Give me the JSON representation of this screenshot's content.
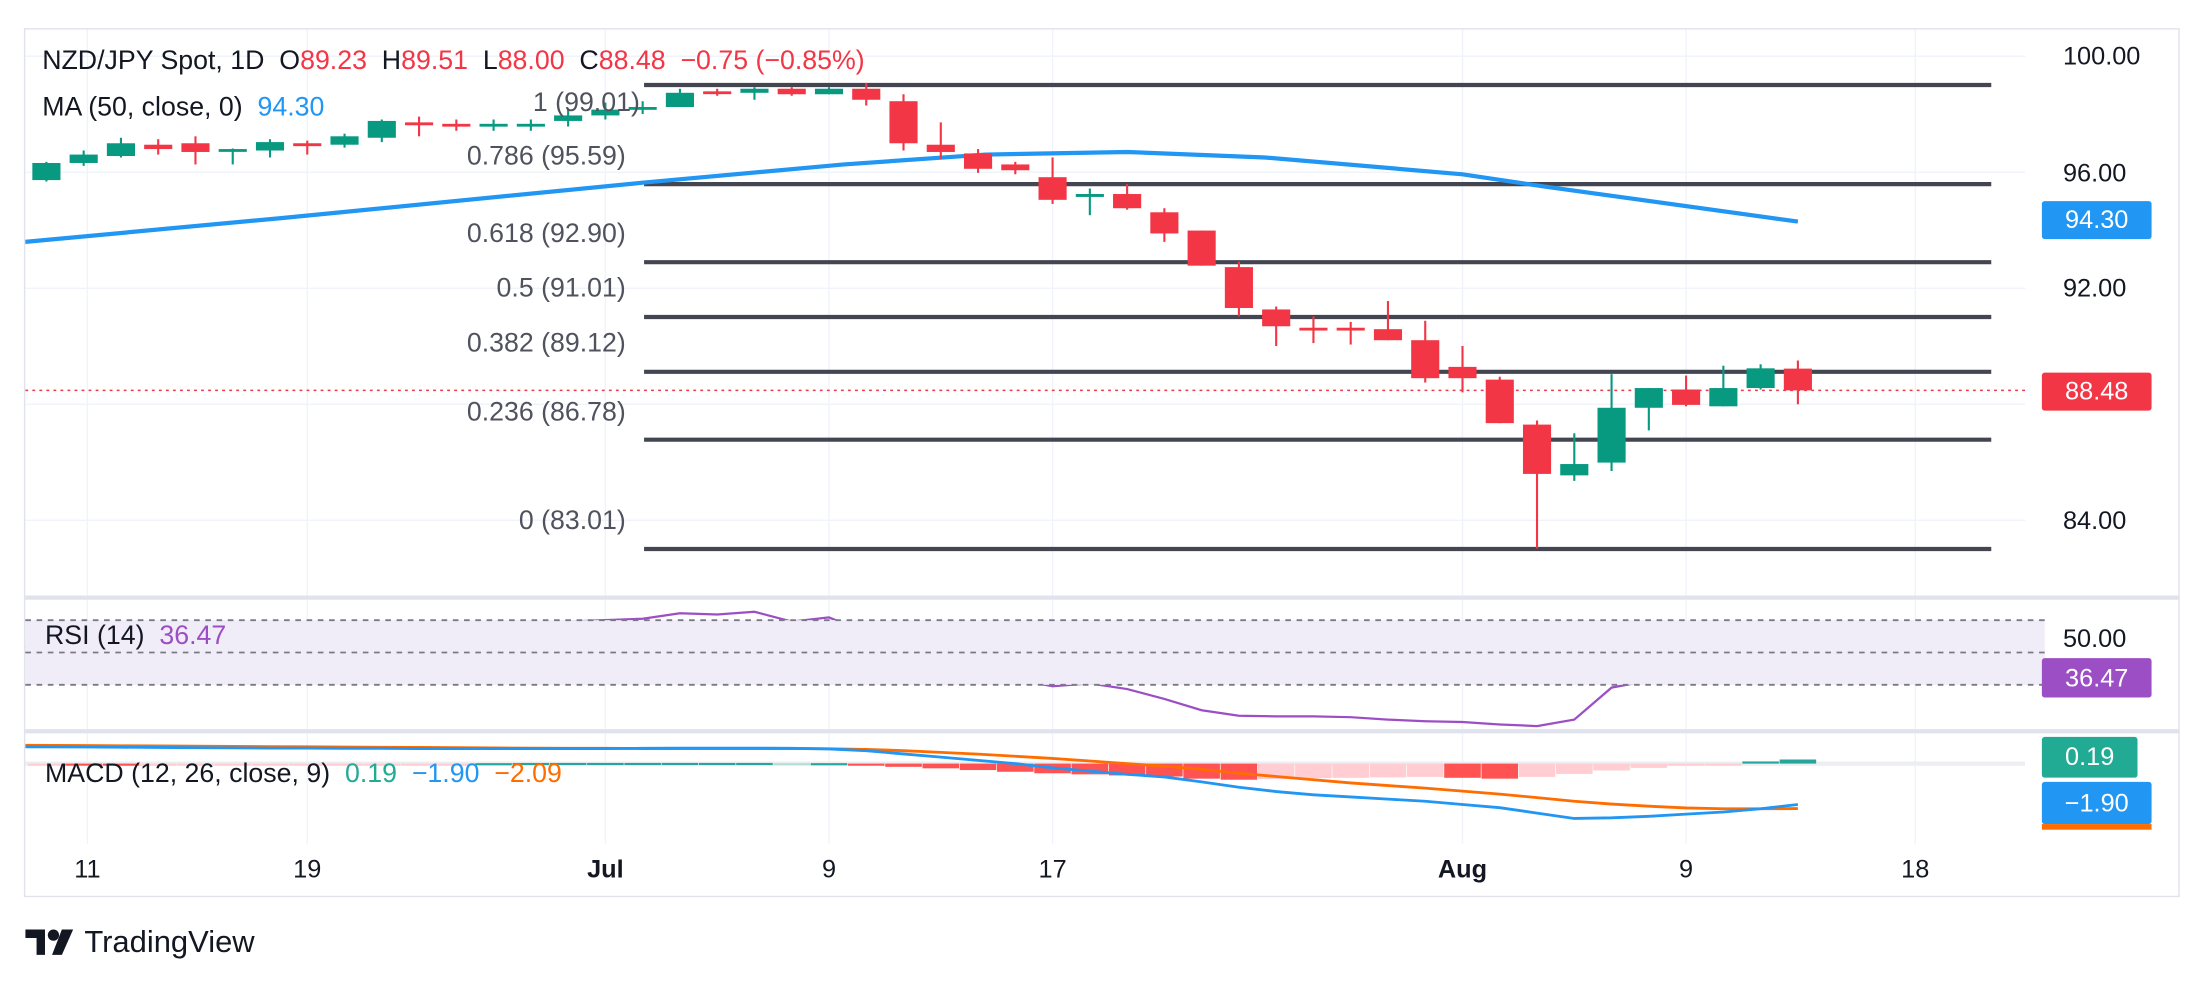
{
  "header": {
    "symbol": "NZD/JPY Spot, 1D",
    "o_label": "O",
    "o": "89.23",
    "h_label": "H",
    "h": "89.51",
    "l_label": "L",
    "l": "88.00",
    "c_label": "C",
    "c": "88.48",
    "change": "−0.75 (−0.85%)"
  },
  "ma_legend": {
    "label": "MA (50, close, 0)",
    "value": "94.30"
  },
  "rsi_legend": {
    "label": "RSI (14)",
    "value": "36.47"
  },
  "macd_legend": {
    "label": "MACD (12, 26, close, 9)",
    "hist": "0.19",
    "macd": "−1.90",
    "signal": "−2.09"
  },
  "price_axis": {
    "ticks": [
      {
        "label": "100.00",
        "value": 100
      },
      {
        "label": "96.00",
        "value": 96
      },
      {
        "label": "92.00",
        "value": 92
      },
      {
        "label": "84.00",
        "value": 84
      }
    ],
    "current": "88.48",
    "ma": "94.30"
  },
  "rsi_axis": {
    "tick": "50.00",
    "current": "36.47"
  },
  "macd_axis": {
    "hist": "0.19",
    "macd": "−1.90"
  },
  "time_axis": [
    {
      "label": "11",
      "index": 1.1,
      "bold": false
    },
    {
      "label": "19",
      "index": 7,
      "bold": false
    },
    {
      "label": "Jul",
      "index": 15,
      "bold": true
    },
    {
      "label": "9",
      "index": 21,
      "bold": false
    },
    {
      "label": "17",
      "index": 27,
      "bold": false
    },
    {
      "label": "Aug",
      "index": 38,
      "bold": true
    },
    {
      "label": "9",
      "index": 44,
      "bold": false
    },
    {
      "label": "18",
      "index": 50.15,
      "bold": false
    }
  ],
  "fib": [
    {
      "label": "1 (99.01)",
      "level": 99.01
    },
    {
      "label": "0.786 (95.59)",
      "level": 95.59
    },
    {
      "label": "0.618 (92.90)",
      "level": 92.9
    },
    {
      "label": "0.5 (91.01)",
      "level": 91.01
    },
    {
      "label": "0.382 (89.12)",
      "level": 89.12
    },
    {
      "label": "0.236 (86.78)",
      "level": 86.78
    },
    {
      "label": "0 (83.01)",
      "level": 83.01
    }
  ],
  "logo": "TradingView",
  "colors": {
    "up": "#089981",
    "down": "#f23645",
    "ma": "#2196f3",
    "rsi": "#9c4fc4",
    "macd": "#2196f3",
    "signal": "#ff6d00",
    "fib": "#434651",
    "grid": "#f0f3fa"
  },
  "chart_data": {
    "type": "candlestick",
    "title": "NZD/JPY Spot, 1D",
    "ylim": [
      82,
      101
    ],
    "ohlc": [
      [
        95.73,
        96.36,
        95.68,
        96.32
      ],
      [
        96.32,
        96.75,
        96.22,
        96.61
      ],
      [
        96.56,
        97.19,
        96.51,
        97.0
      ],
      [
        96.95,
        97.14,
        96.61,
        96.8
      ],
      [
        97.0,
        97.24,
        96.27,
        96.7
      ],
      [
        96.75,
        96.82,
        96.27,
        96.8
      ],
      [
        96.75,
        97.14,
        96.51,
        97.04
      ],
      [
        97.0,
        97.09,
        96.61,
        96.9
      ],
      [
        96.95,
        97.33,
        96.85,
        97.24
      ],
      [
        97.19,
        97.82,
        97.04,
        97.77
      ],
      [
        97.72,
        97.92,
        97.24,
        97.62
      ],
      [
        97.67,
        97.82,
        97.43,
        97.58
      ],
      [
        97.62,
        97.82,
        97.43,
        97.67
      ],
      [
        97.62,
        97.82,
        97.43,
        97.67
      ],
      [
        97.77,
        98.16,
        97.58,
        97.96
      ],
      [
        97.96,
        98.4,
        97.82,
        98.16
      ],
      [
        98.21,
        98.45,
        98.01,
        98.25
      ],
      [
        98.25,
        98.88,
        98.25,
        98.74
      ],
      [
        98.79,
        98.88,
        98.64,
        98.74
      ],
      [
        98.74,
        98.93,
        98.5,
        98.88
      ],
      [
        98.88,
        98.93,
        98.64,
        98.69
      ],
      [
        98.69,
        98.93,
        98.69,
        98.88
      ],
      [
        98.88,
        99.08,
        98.3,
        98.5
      ],
      [
        98.45,
        98.69,
        96.75,
        97.0
      ],
      [
        96.95,
        97.72,
        96.46,
        96.7
      ],
      [
        96.65,
        96.8,
        95.98,
        96.12
      ],
      [
        96.27,
        96.36,
        95.93,
        96.07
      ],
      [
        95.83,
        96.51,
        94.91,
        95.05
      ],
      [
        95.15,
        95.44,
        94.52,
        95.25
      ],
      [
        95.25,
        95.59,
        94.71,
        94.76
      ],
      [
        94.62,
        94.76,
        93.6,
        93.89
      ],
      [
        93.99,
        93.99,
        92.78,
        92.78
      ],
      [
        92.73,
        92.92,
        91.03,
        91.32
      ],
      [
        91.27,
        91.37,
        90.01,
        90.69
      ],
      [
        90.64,
        91.03,
        90.11,
        90.55
      ],
      [
        90.64,
        90.84,
        90.06,
        90.59
      ],
      [
        90.59,
        91.56,
        90.21,
        90.21
      ],
      [
        90.21,
        90.88,
        88.75,
        88.9
      ],
      [
        89.29,
        90.01,
        88.41,
        88.9
      ],
      [
        88.85,
        88.95,
        87.35,
        87.35
      ],
      [
        87.3,
        87.44,
        83.03,
        85.6
      ],
      [
        85.55,
        87.0,
        85.36,
        85.94
      ],
      [
        85.99,
        89.04,
        85.7,
        87.88
      ],
      [
        87.88,
        88.56,
        87.1,
        88.56
      ],
      [
        88.51,
        88.99,
        87.93,
        87.98
      ],
      [
        87.93,
        89.33,
        87.93,
        88.56
      ],
      [
        88.56,
        89.38,
        88.51,
        89.24
      ],
      [
        89.23,
        89.51,
        88.0,
        88.48
      ]
    ],
    "ma50": [
      [
        -0.57,
        93.6
      ],
      [
        6.3,
        94.42
      ],
      [
        16,
        95.64
      ],
      [
        21.4,
        96.27
      ],
      [
        25.2,
        96.61
      ],
      [
        29,
        96.7
      ],
      [
        32.7,
        96.51
      ],
      [
        38,
        95.93
      ],
      [
        40.3,
        95.49
      ],
      [
        47,
        94.3
      ]
    ],
    "rsi": {
      "bands": [
        70,
        50,
        30
      ],
      "values": [
        [
          -0.57,
          53.5
        ],
        [
          1,
          57.8
        ],
        [
          2,
          60.4
        ],
        [
          3,
          57
        ],
        [
          4,
          57.8
        ],
        [
          5,
          57
        ],
        [
          6,
          62.2
        ],
        [
          7,
          61.3
        ],
        [
          8,
          64.8
        ],
        [
          9,
          68.3
        ],
        [
          10,
          67.4
        ],
        [
          11,
          66.5
        ],
        [
          12,
          67.4
        ],
        [
          13,
          67.4
        ],
        [
          14,
          69.1
        ],
        [
          15,
          70
        ],
        [
          16,
          70.9
        ],
        [
          17,
          74.3
        ],
        [
          18,
          73.5
        ],
        [
          19,
          75.2
        ],
        [
          20,
          69.1
        ],
        [
          21,
          71.7
        ],
        [
          22,
          62.2
        ],
        [
          23,
          43
        ],
        [
          24,
          39.6
        ],
        [
          25,
          35.2
        ],
        [
          26,
          33.5
        ],
        [
          27,
          29.1
        ],
        [
          28,
          30.9
        ],
        [
          29,
          27.4
        ],
        [
          30,
          21.3
        ],
        [
          31,
          14.3
        ],
        [
          32,
          10.9
        ],
        [
          33,
          10.5
        ],
        [
          34,
          10.5
        ],
        [
          35,
          10
        ],
        [
          36,
          8.5
        ],
        [
          37,
          7.5
        ],
        [
          38,
          7
        ],
        [
          39,
          5.5
        ],
        [
          40,
          4.5
        ],
        [
          41,
          8.5
        ],
        [
          42,
          28.3
        ],
        [
          43,
          32.6
        ],
        [
          44,
          30.9
        ],
        [
          45,
          34.3
        ],
        [
          46,
          39.6
        ],
        [
          47,
          36.47
        ]
      ]
    },
    "macd": {
      "macd": [
        0.78,
        0.77,
        0.76,
        0.75,
        0.74,
        0.73,
        0.72,
        0.72,
        0.71,
        0.71,
        0.7,
        0.7,
        0.7,
        0.7,
        0.7,
        0.7,
        0.71,
        0.72,
        0.72,
        0.72,
        0.71,
        0.68,
        0.6,
        0.45,
        0.3,
        0.15,
        0.0,
        -0.2,
        -0.35,
        -0.5,
        -0.62,
        -0.85,
        -1.1,
        -1.3,
        -1.45,
        -1.55,
        -1.65,
        -1.75,
        -1.9,
        -2.05,
        -2.3,
        -2.55,
        -2.52,
        -2.45,
        -2.35,
        -2.25,
        -2.1,
        -1.9
      ],
      "signal": [
        0.85,
        0.84,
        0.83,
        0.82,
        0.81,
        0.8,
        0.79,
        0.78,
        0.77,
        0.76,
        0.75,
        0.74,
        0.73,
        0.72,
        0.71,
        0.71,
        0.7,
        0.7,
        0.7,
        0.7,
        0.7,
        0.69,
        0.66,
        0.6,
        0.52,
        0.44,
        0.34,
        0.24,
        0.12,
        0.0,
        -0.12,
        -0.27,
        -0.45,
        -0.6,
        -0.75,
        -0.9,
        -1.02,
        -1.14,
        -1.28,
        -1.42,
        -1.58,
        -1.75,
        -1.88,
        -1.98,
        -2.06,
        -2.1,
        -2.1,
        -2.09
      ],
      "histogram": [
        -0.08,
        -0.09,
        -0.1,
        -0.1,
        -0.08,
        -0.06,
        -0.05,
        -0.04,
        -0.03,
        -0.02,
        -0.02,
        -0.01,
        0.02,
        0.03,
        0.03,
        0.03,
        0.03,
        0.03,
        0.03,
        0.03,
        0.02,
        0.02,
        -0.04,
        -0.15,
        -0.22,
        -0.3,
        -0.38,
        -0.45,
        -0.5,
        -0.55,
        -0.6,
        -0.7,
        -0.75,
        -0.72,
        -0.68,
        -0.66,
        -0.64,
        -0.62,
        -0.66,
        -0.7,
        -0.62,
        -0.48,
        -0.32,
        -0.2,
        -0.1,
        -0.04,
        0.1,
        0.19
      ]
    }
  }
}
